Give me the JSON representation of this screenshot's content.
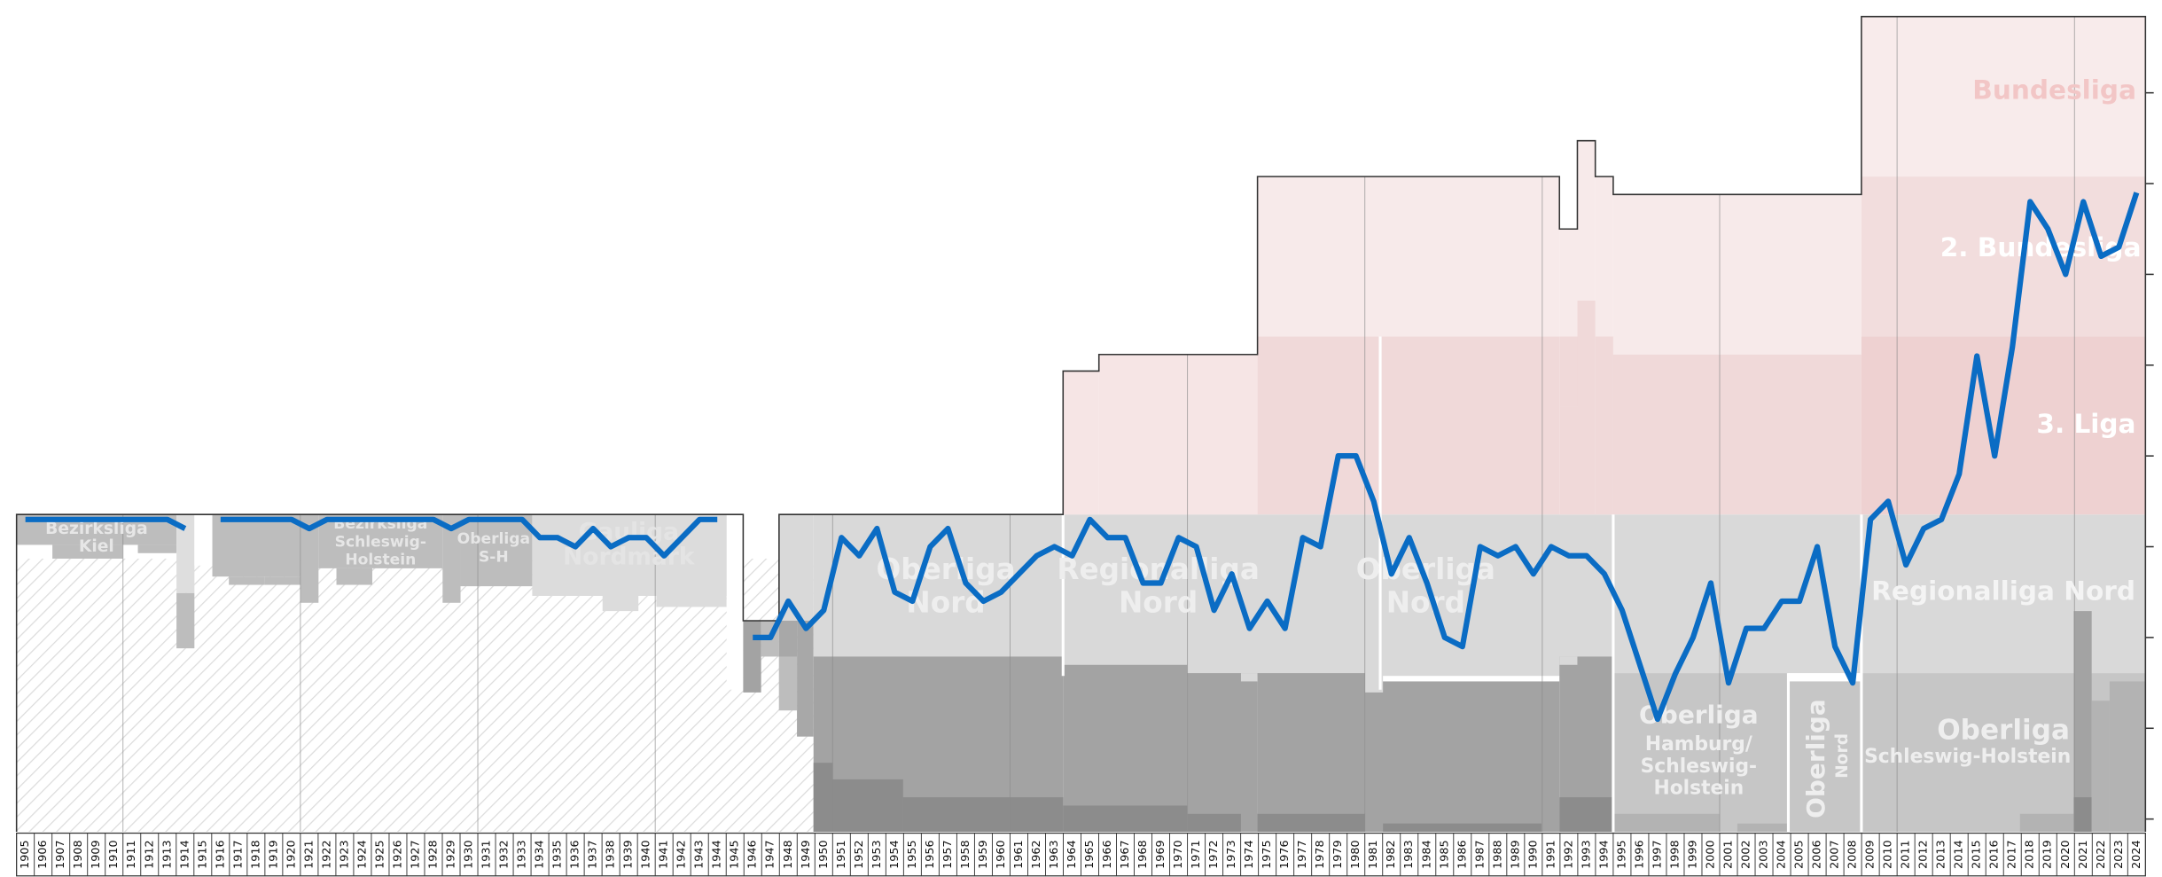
{
  "chart_data": {
    "type": "line",
    "color": "#0a6cc4",
    "categories": [
      "1905",
      "1906",
      "1907",
      "1908",
      "1909",
      "1910",
      "1911",
      "1912",
      "1913",
      "1914",
      "1915",
      "1916",
      "1917",
      "1918",
      "1919",
      "1920",
      "1921",
      "1922",
      "1923",
      "1924",
      "1925",
      "1926",
      "1927",
      "1928",
      "1929",
      "1930",
      "1931",
      "1932",
      "1933",
      "1934",
      "1935",
      "1936",
      "1937",
      "1938",
      "1939",
      "1940",
      "1941",
      "1942",
      "1943",
      "1944",
      "1945",
      "1946",
      "1947",
      "1948",
      "1949",
      "1950",
      "1951",
      "1952",
      "1953",
      "1954",
      "1955",
      "1956",
      "1957",
      "1958",
      "1959",
      "1960",
      "1961",
      "1962",
      "1963",
      "1964",
      "1965",
      "1966",
      "1967",
      "1968",
      "1969",
      "1970",
      "1971",
      "1972",
      "1973",
      "1974",
      "1975",
      "1976",
      "1977",
      "1978",
      "1979",
      "1980",
      "1981",
      "1982",
      "1983",
      "1984",
      "1985",
      "1986",
      "1987",
      "1988",
      "1989",
      "1990",
      "1991",
      "1992",
      "1993",
      "1994",
      "1995",
      "1996",
      "1997",
      "1998",
      "1999",
      "2000",
      "2001",
      "2002",
      "2003",
      "2004",
      "2005",
      "2006",
      "2007",
      "2008",
      "2009",
      "2010",
      "2011",
      "2012",
      "2013",
      "2014",
      "2015",
      "2016",
      "2017",
      "2018",
      "2019",
      "2020",
      "2021",
      "2022",
      "2023",
      "2024"
    ],
    "values": [
      33,
      33,
      33,
      33,
      33,
      33,
      33,
      33,
      33,
      32,
      null,
      33,
      33,
      33,
      33,
      33,
      32,
      33,
      33,
      33,
      33,
      33,
      33,
      33,
      32,
      33,
      33,
      33,
      33,
      31,
      31,
      30,
      32,
      30,
      31,
      31,
      29,
      31,
      33,
      33,
      null,
      20,
      20,
      24,
      21,
      23,
      31,
      29,
      32,
      25,
      24,
      30,
      32,
      26,
      24,
      25,
      27,
      29,
      30,
      29,
      33,
      31,
      31,
      26,
      26,
      31,
      30,
      23,
      27,
      21,
      24,
      21,
      31,
      30,
      40,
      40,
      35,
      27,
      31,
      26,
      20,
      19,
      30,
      29,
      30,
      27,
      30,
      29,
      29,
      27,
      23,
      17,
      11,
      16,
      20,
      26,
      15,
      21,
      21,
      24,
      24,
      30,
      19,
      15,
      33,
      35,
      28,
      32,
      33,
      38,
      51,
      40,
      52,
      68,
      65,
      60,
      68,
      62,
      63,
      69
    ],
    "ylim": [
      -1.4,
      88.4
    ],
    "yticks": [
      0,
      10,
      20,
      30,
      40,
      50,
      60,
      70,
      80
    ],
    "annotations": [
      {
        "lines": [
          "Bezirksliga",
          "Kiel"
        ]
      },
      {
        "lines": [
          "Bezirksliga",
          "Schleswig-",
          "Holstein"
        ]
      },
      {
        "lines": [
          "Oberliga",
          "S-H"
        ]
      },
      {
        "lines": [
          "Gauliga",
          "Nordmark"
        ]
      },
      {
        "lines": [
          "Oberliga",
          "Nord"
        ]
      },
      {
        "lines": [
          "Regionalliga",
          "Nord"
        ]
      },
      {
        "lines": [
          "Oberliga",
          "Nord"
        ]
      },
      {
        "lines": [
          "Oberliga"
        ]
      },
      {
        "lines": [
          "Hamburg/",
          "Schleswig-",
          "Holstein"
        ]
      },
      {
        "lines": [
          "Oberliga"
        ]
      },
      {
        "lines": [
          "Nord"
        ]
      },
      {
        "lines": [
          "Oberliga"
        ]
      },
      {
        "lines": [
          "Schleswig-Holstein"
        ]
      },
      {
        "lines": [
          "Regionalliga Nord"
        ]
      },
      {
        "lines": [
          "3. Liga"
        ]
      },
      {
        "lines": [
          "2. Bundesliga"
        ]
      },
      {
        "lines": [
          "Bundesliga"
        ]
      }
    ]
  }
}
